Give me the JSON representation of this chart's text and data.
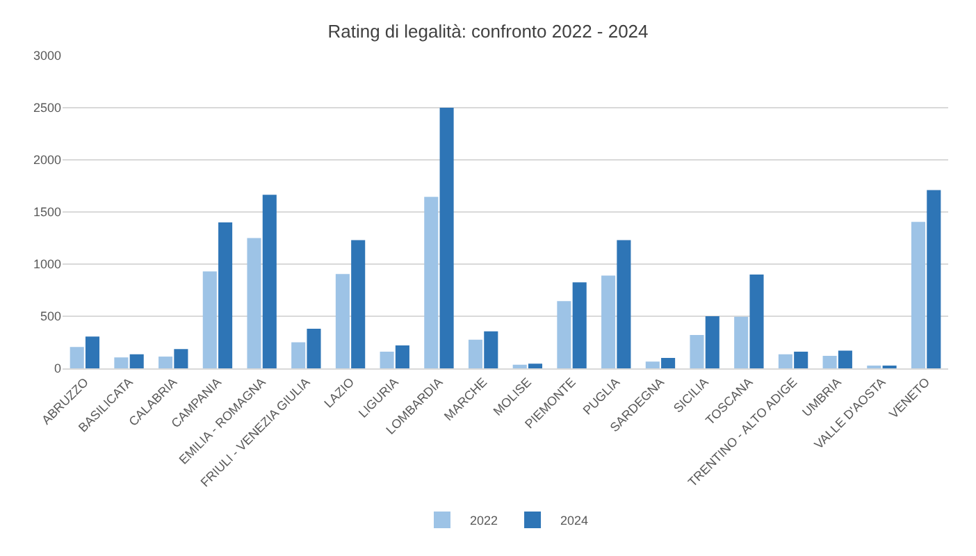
{
  "chart_data": {
    "type": "bar",
    "title": "Rating di legalità: confronto 2022 - 2024",
    "categories": [
      "ABRUZZO",
      "BASILICATA",
      "CALABRIA",
      "CAMPANIA",
      "EMILIA - ROMAGNA",
      "FRIULI - VENEZIA GIULIA",
      "LAZIO",
      "LIGURIA",
      "LOMBARDIA",
      "MARCHE",
      "MOLISE",
      "PIEMONTE",
      "PUGLIA",
      "SARDEGNA",
      "SICILIA",
      "TOSCANA",
      "TRENTINO - ALTO ADIGE",
      "UMBRIA",
      "VALLE D'AOSTA",
      "VENETO"
    ],
    "series": [
      {
        "name": "2022",
        "color": "#9dc3e6",
        "values": [
          205,
          105,
          113,
          930,
          1250,
          250,
          905,
          160,
          1645,
          275,
          35,
          645,
          890,
          65,
          320,
          495,
          135,
          120,
          20,
          1405
        ]
      },
      {
        "name": "2024",
        "color": "#2e75b6",
        "values": [
          305,
          135,
          185,
          1400,
          1665,
          380,
          1230,
          220,
          2500,
          355,
          45,
          825,
          1230,
          100,
          500,
          900,
          160,
          170,
          20,
          1710
        ]
      }
    ],
    "ylim": [
      0,
      3000
    ],
    "yticks": [
      0,
      500,
      1000,
      1500,
      2000,
      2500,
      3000
    ],
    "grid": "y",
    "legend": "bottom"
  }
}
